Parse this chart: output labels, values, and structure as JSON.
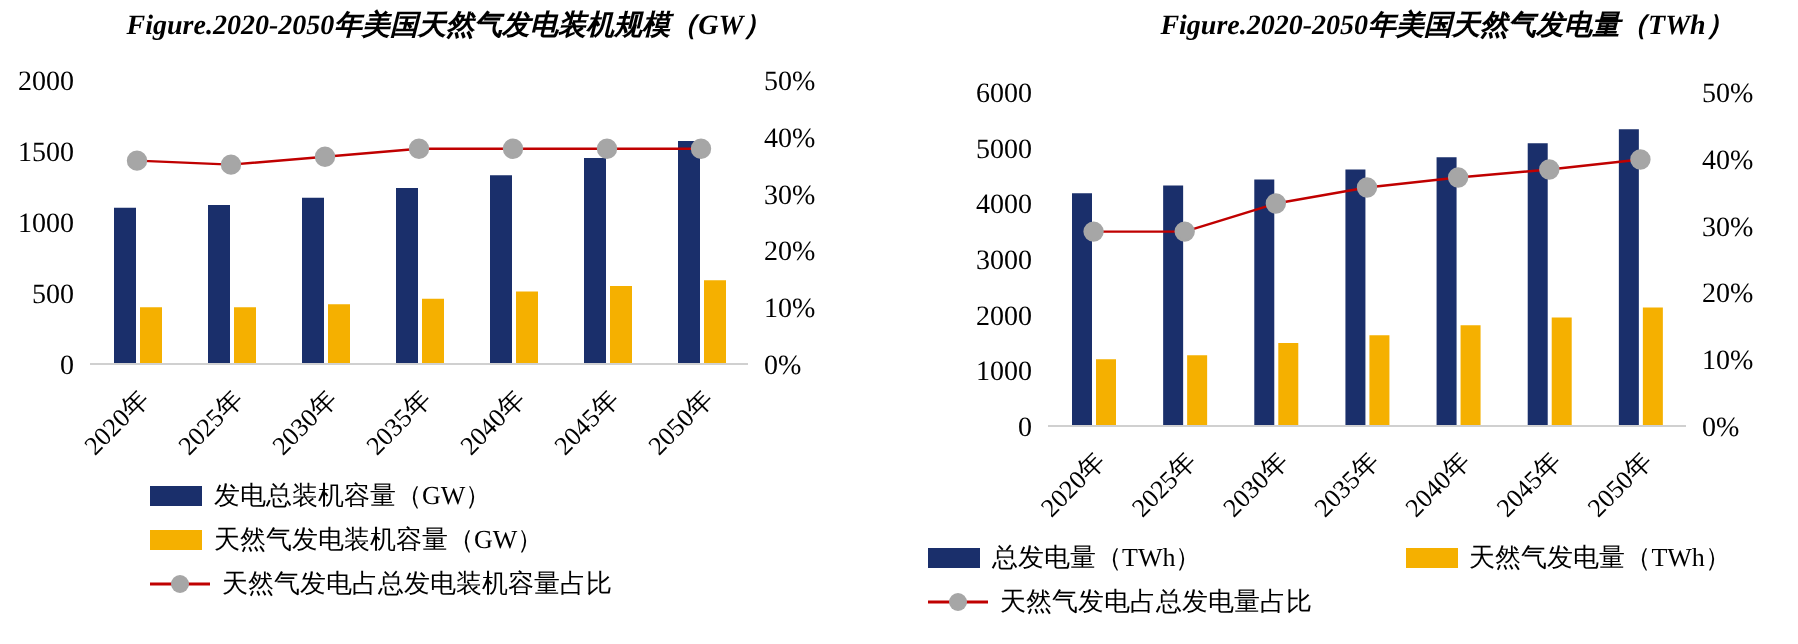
{
  "chart_data": [
    {
      "type": "bar",
      "title": "Figure.2020-2050年美国天然气发电装机规模（GW）",
      "categories": [
        "2020年",
        "2025年",
        "2030年",
        "2035年",
        "2040年",
        "2045年",
        "2050年"
      ],
      "series": [
        {
          "name": "发电总装机容量（GW）",
          "color": "#1a2f6b",
          "values": [
            1100,
            1120,
            1170,
            1240,
            1330,
            1450,
            1570
          ]
        },
        {
          "name": "天然气发电装机容量（GW）",
          "color": "#f5b000",
          "values": [
            400,
            400,
            420,
            460,
            510,
            550,
            590
          ]
        },
        {
          "name": "天然气发电占总发电装机容量占比",
          "type": "line",
          "axis": "y2",
          "color": "#c00000",
          "marker": "circle",
          "values": [
            35.8,
            35.1,
            36.5,
            37.9,
            37.9,
            37.9,
            37.9
          ]
        }
      ],
      "ylim": [
        0,
        2000
      ],
      "yticks": [
        0,
        500,
        1000,
        1500,
        2000
      ],
      "y2lim": [
        0,
        50
      ],
      "y2ticks": [
        {
          "value": 0,
          "label": "0%"
        },
        {
          "value": 10,
          "label": "10%"
        },
        {
          "value": 20,
          "label": "20%"
        },
        {
          "value": 30,
          "label": "30%"
        },
        {
          "value": 40,
          "label": "40%"
        },
        {
          "value": 50,
          "label": "50%"
        }
      ],
      "grid": false,
      "legend": "bottom"
    },
    {
      "type": "bar",
      "title": "Figure.2020-2050年美国天然气发电量（TWh）",
      "categories": [
        "2020年",
        "2025年",
        "2030年",
        "2035年",
        "2040年",
        "2045年",
        "2050年"
      ],
      "series": [
        {
          "name": "总发电量（TWh）",
          "color": "#1a2f6b",
          "values": [
            4180,
            4320,
            4430,
            4610,
            4830,
            5080,
            5330
          ]
        },
        {
          "name": "天然气发电量（TWh）",
          "color": "#f5b000",
          "values": [
            1200,
            1270,
            1490,
            1630,
            1810,
            1950,
            2130
          ]
        },
        {
          "name": "天然气发电占总发电量占比",
          "type": "line",
          "axis": "y2",
          "color": "#c00000",
          "marker": "circle",
          "values": [
            29.1,
            29.1,
            33.3,
            35.7,
            37.2,
            38.4,
            39.9
          ]
        }
      ],
      "ylim": [
        0,
        6000
      ],
      "yticks": [
        0,
        1000,
        2000,
        3000,
        4000,
        5000,
        6000
      ],
      "y2lim": [
        0,
        50
      ],
      "y2ticks": [
        {
          "value": 0,
          "label": "0%"
        },
        {
          "value": 10,
          "label": "10%"
        },
        {
          "value": 20,
          "label": "20%"
        },
        {
          "value": 30,
          "label": "30%"
        },
        {
          "value": 40,
          "label": "40%"
        },
        {
          "value": 50,
          "label": "50%"
        }
      ],
      "grid": false,
      "legend": "bottom"
    }
  ]
}
